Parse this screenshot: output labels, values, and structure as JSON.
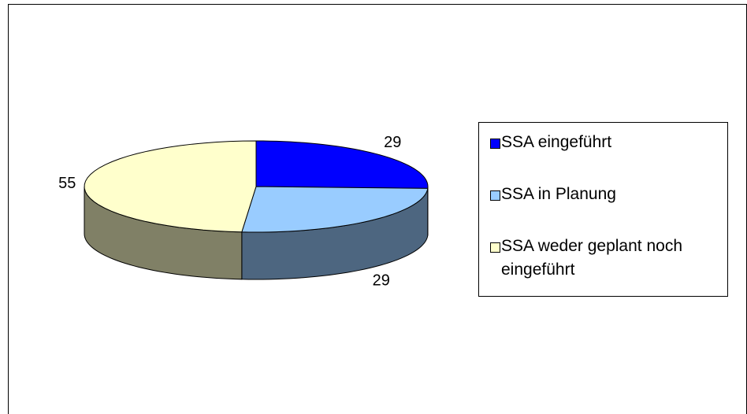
{
  "chart_data": {
    "type": "pie",
    "categories": [
      "SSA eingeführt",
      "SSA in Planung",
      "SSA weder geplant noch eingeführt"
    ],
    "values": [
      29,
      29,
      55
    ],
    "colors": [
      "#0000ff",
      "#99ccff",
      "#ffffcc"
    ],
    "legend": "right"
  }
}
